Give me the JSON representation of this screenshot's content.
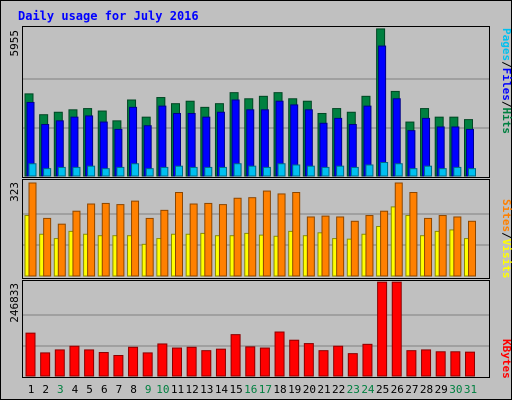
{
  "chart_data": {
    "type": "bar",
    "title": "Daily usage for July 2016",
    "categories": [
      "1",
      "2",
      "3",
      "4",
      "5",
      "6",
      "7",
      "8",
      "9",
      "10",
      "11",
      "12",
      "13",
      "14",
      "15",
      "16",
      "17",
      "18",
      "19",
      "20",
      "21",
      "22",
      "23",
      "24",
      "25",
      "26",
      "27",
      "28",
      "29",
      "30",
      "31"
    ],
    "weekend_days": [
      "3",
      "9",
      "10",
      "16",
      "17",
      "23",
      "24",
      "30",
      "31"
    ],
    "panels": [
      {
        "id": "hits",
        "ymax": 5955,
        "ymax_label": "5955",
        "legend": [
          {
            "text": "Pages",
            "color": "#00c0f0"
          },
          {
            "text": "Files",
            "color": "#0000ff"
          },
          {
            "text": "Hits",
            "color": "#008040"
          }
        ],
        "series": [
          {
            "name": "Hits",
            "color": "#008040",
            "values": [
              3350,
              2500,
              2600,
              2700,
              2750,
              2650,
              2250,
              3100,
              2400,
              3200,
              2950,
              3050,
              2800,
              2950,
              3400,
              3150,
              3250,
              3400,
              3150,
              3050,
              2550,
              2750,
              2600,
              3250,
              6000,
              3450,
              2200,
              2750,
              2400,
              2400,
              2300
            ]
          },
          {
            "name": "Files",
            "color": "#0000ff",
            "values": [
              3000,
              2100,
              2250,
              2400,
              2450,
              2200,
              1900,
              2800,
              2050,
              2850,
              2550,
              2550,
              2400,
              2600,
              3100,
              2700,
              2700,
              3050,
              2900,
              2700,
              2150,
              2350,
              2100,
              2850,
              5300,
              3150,
              1850,
              2350,
              2000,
              2000,
              1900
            ]
          },
          {
            "name": "Pages",
            "color": "#00c0f0",
            "values": [
              500,
              300,
              350,
              350,
              400,
              300,
              350,
              500,
              300,
              350,
              400,
              350,
              350,
              350,
              500,
              400,
              350,
              500,
              450,
              400,
              350,
              400,
              350,
              450,
              550,
              500,
              300,
              400,
              300,
              350,
              300
            ]
          }
        ]
      },
      {
        "id": "visits",
        "ymax": 323,
        "ymax_label": "323",
        "legend": [
          {
            "text": "Sites",
            "color": "#ff8000"
          },
          {
            "text": "Visits",
            "color": "#ffff00"
          }
        ],
        "series": [
          {
            "name": "Sites",
            "color": "#ff8000",
            "values": [
              323,
              200,
              180,
              225,
              250,
              252,
              248,
              260,
              200,
              228,
              290,
              250,
              252,
              248,
              270,
              272,
              295,
              285,
              290,
              205,
              208,
              205,
              190,
              210,
              225,
              323,
              290,
              200,
              210,
              205,
              190
            ]
          },
          {
            "name": "Visits",
            "color": "#ffff00",
            "values": [
              210,
              145,
              130,
              155,
              145,
              140,
              140,
              140,
              110,
              130,
              145,
              145,
              148,
              140,
              140,
              148,
              142,
              138,
              155,
              140,
              150,
              130,
              128,
              145,
              172,
              240,
              210,
              140,
              155,
              160,
              130
            ]
          }
        ]
      },
      {
        "id": "kbytes",
        "ymax": 246833,
        "ymax_label": "246833",
        "legend": [
          {
            "text": "KBytes",
            "color": "#ff0000"
          }
        ],
        "series": [
          {
            "name": "KBytes",
            "color": "#ff0000",
            "values": [
              115000,
              62000,
              70000,
              80000,
              70000,
              63000,
              55000,
              77000,
              62000,
              86000,
              75000,
              77000,
              68000,
              72000,
              111000,
              78000,
              75000,
              118000,
              96000,
              87000,
              68000,
              80000,
              60000,
              85000,
              255000,
              255000,
              68000,
              70000,
              65000,
              65000,
              64000
            ]
          }
        ]
      }
    ]
  }
}
